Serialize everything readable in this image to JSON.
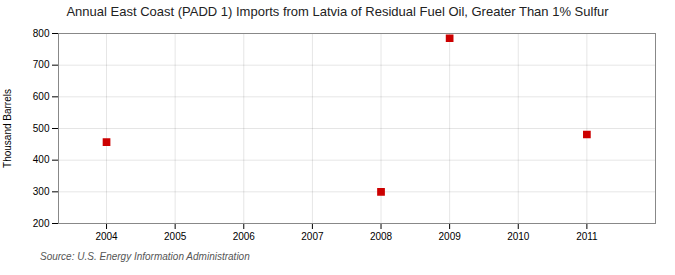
{
  "chart_data": {
    "type": "scatter",
    "title": "Annual East Coast (PADD 1) Imports from Latvia of Residual Fuel Oil, Greater Than 1% Sulfur",
    "ylabel": "Thousand Barrels",
    "source": "Source: U.S. Energy Information Administration",
    "x": [
      2004,
      2008,
      2009,
      2011
    ],
    "values": [
      457,
      300,
      785,
      481
    ],
    "xlim": [
      2003.3,
      2012.0
    ],
    "ylim": [
      200,
      800
    ],
    "xticks": [
      2004,
      2005,
      2006,
      2007,
      2008,
      2009,
      2010,
      2011
    ],
    "yticks": [
      200,
      300,
      400,
      500,
      600,
      700,
      800
    ],
    "color": "#cc0000",
    "marker": "square",
    "grid": true
  }
}
